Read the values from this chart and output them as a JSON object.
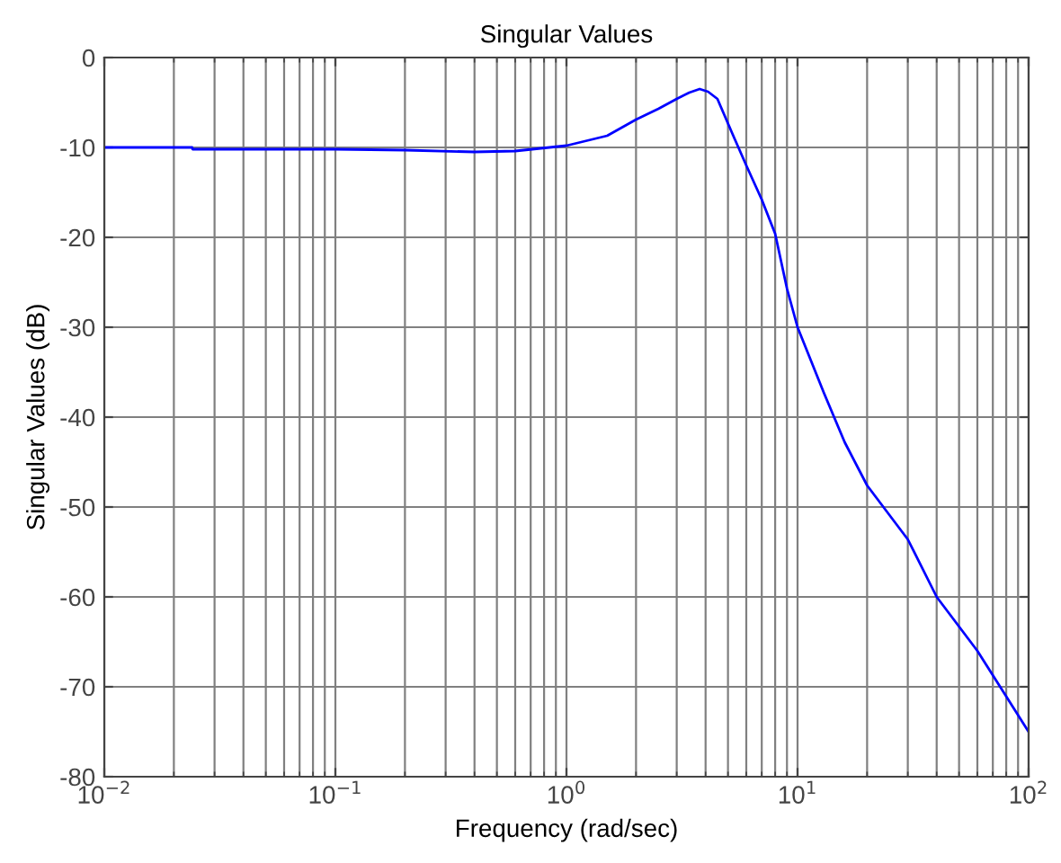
{
  "chart_data": {
    "type": "line",
    "title": "Singular Values",
    "xlabel": "Frequency (rad/sec)",
    "ylabel": "Singular Values (dB)",
    "log": "x",
    "grid": true,
    "marker": "none",
    "line_style": "solid",
    "xlim": [
      0.01,
      100
    ],
    "ylim": [
      -80,
      0
    ],
    "xticks": [
      {
        "value": 0.01,
        "label": "10$^{−2}$"
      },
      {
        "value": 0.1,
        "label": "10$^{−1}$"
      },
      {
        "value": 1,
        "label": "10$^{0}$"
      },
      {
        "value": 10,
        "label": "10$^{1}$"
      },
      {
        "value": 100,
        "label": "10$^{2}$"
      }
    ],
    "yticks": [
      -80,
      -70,
      -60,
      -50,
      -40,
      -30,
      -20,
      -10,
      0
    ],
    "series": [
      {
        "color": "#0000ff",
        "x": [
          0.01,
          0.024,
          0.0241,
          0.1,
          0.2,
          0.4,
          0.6,
          1,
          1.5,
          2,
          2.5,
          3,
          3.4,
          3.77,
          4.1,
          4.5,
          5.25,
          6,
          7,
          8,
          9,
          10,
          13,
          16,
          20,
          30,
          40,
          60,
          100
        ],
        "values": [
          -10.0,
          -10.0,
          -10.2,
          -10.2,
          -10.3,
          -10.5,
          -10.4,
          -9.8,
          -8.7,
          -6.9,
          -5.7,
          -4.6,
          -3.9,
          -3.5,
          -3.8,
          -4.6,
          -8.6,
          -12,
          -15.8,
          -19.6,
          -25.7,
          -30,
          -37.3,
          -42.8,
          -47.6,
          -53.6,
          -60,
          -66,
          -75
        ]
      }
    ]
  }
}
